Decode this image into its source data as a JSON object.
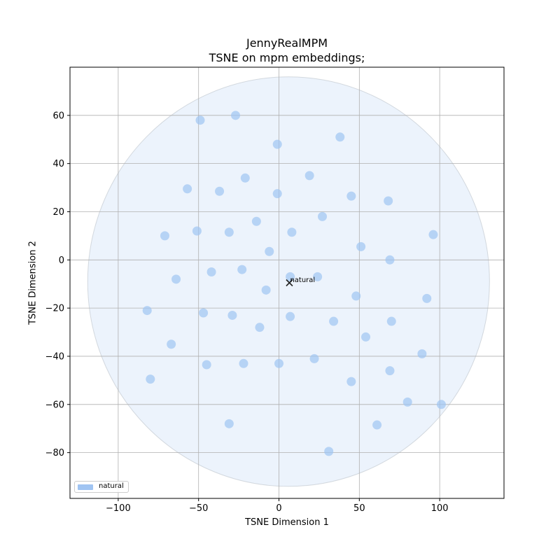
{
  "chart_data": {
    "type": "scatter",
    "title": "JennyRealMPM",
    "subtitle": "TSNE on mpm embeddings;",
    "xlabel": "TSNE Dimension 1",
    "ylabel": "TSNE Dimension 2",
    "xlim": [
      -130,
      140
    ],
    "ylim": [
      -99,
      80
    ],
    "xticks": [
      -100,
      -50,
      0,
      50,
      100
    ],
    "yticks": [
      -80,
      -60,
      -40,
      -20,
      0,
      20,
      40,
      60
    ],
    "grid": true,
    "legend_placement": "lower-left",
    "series": [
      {
        "name": "natural",
        "color": "#a0c4f2",
        "points": [
          [
            -49,
            58
          ],
          [
            -27,
            60
          ],
          [
            -1,
            48
          ],
          [
            38,
            51
          ],
          [
            -57,
            29.5
          ],
          [
            -37,
            28.5
          ],
          [
            -21,
            34
          ],
          [
            -1,
            27.5
          ],
          [
            19,
            35
          ],
          [
            45,
            26.5
          ],
          [
            68,
            24.5
          ],
          [
            -71,
            10
          ],
          [
            -51,
            12
          ],
          [
            -31,
            11.5
          ],
          [
            -14,
            16
          ],
          [
            8,
            11.5
          ],
          [
            27,
            18
          ],
          [
            -6,
            3.5
          ],
          [
            51,
            5.5
          ],
          [
            69,
            0
          ],
          [
            96,
            10.5
          ],
          [
            -64,
            -8
          ],
          [
            -42,
            -5
          ],
          [
            -23,
            -4
          ],
          [
            -8,
            -12.5
          ],
          [
            7,
            -7
          ],
          [
            24,
            -7
          ],
          [
            48,
            -15
          ],
          [
            -82,
            -21
          ],
          [
            -47,
            -22
          ],
          [
            -29,
            -23
          ],
          [
            -12,
            -28
          ],
          [
            7,
            -23.5
          ],
          [
            34,
            -25.5
          ],
          [
            70,
            -25.5
          ],
          [
            92,
            -16
          ],
          [
            -67,
            -35
          ],
          [
            -45,
            -43.5
          ],
          [
            -22,
            -43
          ],
          [
            0,
            -43
          ],
          [
            22,
            -41
          ],
          [
            54,
            -32
          ],
          [
            89,
            -39
          ],
          [
            -80,
            -49.5
          ],
          [
            45,
            -50.5
          ],
          [
            69,
            -46
          ],
          [
            -31,
            -68
          ],
          [
            61,
            -68.5
          ],
          [
            80,
            -59
          ],
          [
            101,
            -60
          ],
          [
            31,
            -79.5
          ]
        ]
      }
    ],
    "ellipse": {
      "center": [
        6,
        -9
      ],
      "rx": 125,
      "ry": 85,
      "color": "#a0c4f2"
    },
    "centroid": {
      "point": [
        6.5,
        -9.5
      ],
      "label": "natural"
    }
  }
}
